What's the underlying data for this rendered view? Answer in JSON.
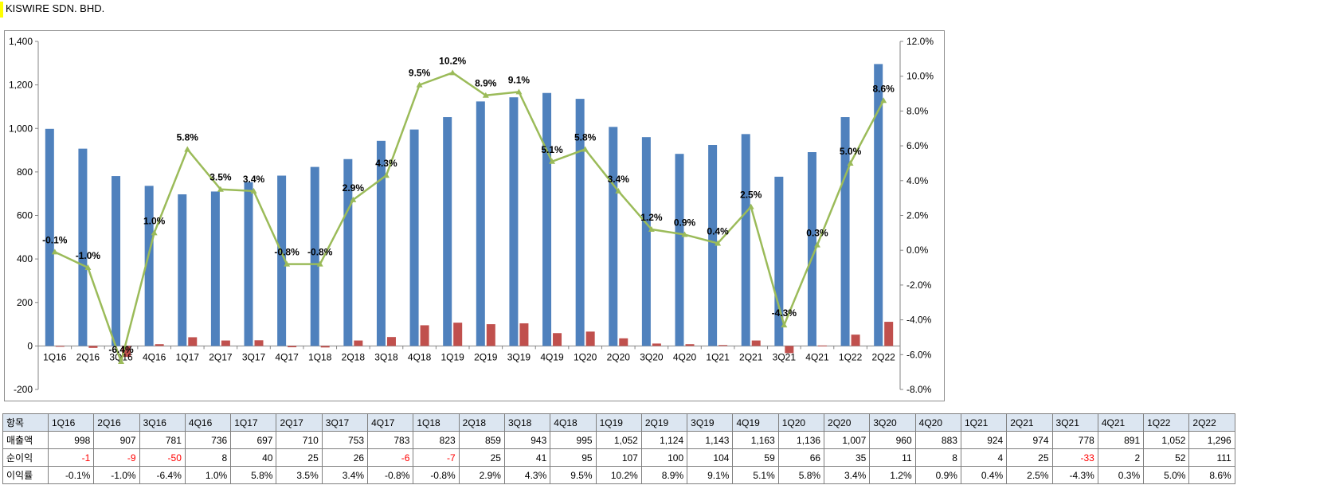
{
  "page": {
    "company": "KISWIRE SDN. BHD."
  },
  "colors": {
    "revenue_bar": "#4f81bd",
    "profit_bar": "#c0504d",
    "margin_line": "#9bbb59",
    "axis": "#868686",
    "negative_text": "#ff0000",
    "table_header_bg": "#dce6f1"
  },
  "chart_data": {
    "type": "bar",
    "title": "",
    "categories": [
      "1Q16",
      "2Q16",
      "3Q16",
      "4Q16",
      "1Q17",
      "2Q17",
      "3Q17",
      "4Q17",
      "1Q18",
      "2Q18",
      "3Q18",
      "4Q18",
      "1Q19",
      "2Q19",
      "3Q19",
      "4Q19",
      "1Q20",
      "2Q20",
      "3Q20",
      "4Q20",
      "1Q21",
      "2Q21",
      "3Q21",
      "4Q21",
      "1Q22",
      "2Q22"
    ],
    "series": [
      {
        "name": "매출액",
        "type": "bar",
        "axis": "left",
        "color": "#4f81bd",
        "values": [
          998,
          907,
          781,
          736,
          697,
          710,
          753,
          783,
          823,
          859,
          943,
          995,
          1052,
          1124,
          1143,
          1163,
          1136,
          1007,
          960,
          883,
          924,
          974,
          778,
          891,
          1052,
          1296
        ]
      },
      {
        "name": "순이익",
        "type": "bar",
        "axis": "left",
        "color": "#c0504d",
        "values": [
          -1,
          -9,
          -50,
          8,
          40,
          25,
          26,
          -6,
          -7,
          25,
          41,
          95,
          107,
          100,
          104,
          59,
          66,
          35,
          11,
          8,
          4,
          25,
          -33,
          2,
          52,
          111
        ]
      },
      {
        "name": "이익률",
        "type": "line",
        "axis": "right",
        "color": "#9bbb59",
        "values": [
          -0.1,
          -1.0,
          -6.4,
          1.0,
          5.8,
          3.5,
          3.4,
          -0.8,
          -0.8,
          2.9,
          4.3,
          9.5,
          10.2,
          8.9,
          9.1,
          5.1,
          5.8,
          3.4,
          1.2,
          0.9,
          0.4,
          2.5,
          -4.3,
          0.3,
          5.0,
          8.6
        ],
        "labels": [
          "-0.1%",
          "-1.0%",
          "-6.4%",
          "1.0%",
          "5.8%",
          "3.5%",
          "3.4%",
          "-0.8%",
          "-0.8%",
          "2.9%",
          "4.3%",
          "9.5%",
          "10.2%",
          "8.9%",
          "9.1%",
          "5.1%",
          "5.8%",
          "3.4%",
          "1.2%",
          "0.9%",
          "0.4%",
          "2.5%",
          "-4.3%",
          "0.3%",
          "5.0%",
          "8.6%"
        ]
      }
    ],
    "y_left": {
      "min": -200,
      "max": 1400,
      "step": 200,
      "ticks": [
        "-200",
        "0",
        "200",
        "400",
        "600",
        "800",
        "1,000",
        "1,200",
        "1,400"
      ]
    },
    "y_right": {
      "min": -8,
      "max": 12,
      "step": 2,
      "ticks": [
        "-8.0%",
        "-6.0%",
        "-4.0%",
        "-2.0%",
        "0.0%",
        "2.0%",
        "4.0%",
        "6.0%",
        "8.0%",
        "10.0%",
        "12.0%"
      ]
    },
    "grid": false,
    "legend": "none"
  },
  "table": {
    "header_label": "항목",
    "periods": [
      "1Q16",
      "2Q16",
      "3Q16",
      "4Q16",
      "1Q17",
      "2Q17",
      "3Q17",
      "4Q17",
      "1Q18",
      "2Q18",
      "3Q18",
      "4Q18",
      "1Q19",
      "2Q19",
      "3Q19",
      "4Q19",
      "1Q20",
      "2Q20",
      "3Q20",
      "4Q20",
      "1Q21",
      "2Q21",
      "3Q21",
      "4Q21",
      "1Q22",
      "2Q22"
    ],
    "rows": [
      {
        "label": "매출액",
        "cells": [
          "998",
          "907",
          "781",
          "736",
          "697",
          "710",
          "753",
          "783",
          "823",
          "859",
          "943",
          "995",
          "1,052",
          "1,124",
          "1,143",
          "1,163",
          "1,136",
          "1,007",
          "960",
          "883",
          "924",
          "974",
          "778",
          "891",
          "1,052",
          "1,296"
        ]
      },
      {
        "label": "순이익",
        "cells": [
          "-1",
          "-9",
          "-50",
          "8",
          "40",
          "25",
          "26",
          "-6",
          "-7",
          "25",
          "41",
          "95",
          "107",
          "100",
          "104",
          "59",
          "66",
          "35",
          "11",
          "8",
          "4",
          "25",
          "-33",
          "2",
          "52",
          "111"
        ]
      },
      {
        "label": "이익률",
        "cells": [
          "-0.1%",
          "-1.0%",
          "-6.4%",
          "1.0%",
          "5.8%",
          "3.5%",
          "3.4%",
          "-0.8%",
          "-0.8%",
          "2.9%",
          "4.3%",
          "9.5%",
          "10.2%",
          "8.9%",
          "9.1%",
          "5.1%",
          "5.8%",
          "3.4%",
          "1.2%",
          "0.9%",
          "0.4%",
          "2.5%",
          "-4.3%",
          "0.3%",
          "5.0%",
          "8.6%"
        ]
      }
    ]
  }
}
